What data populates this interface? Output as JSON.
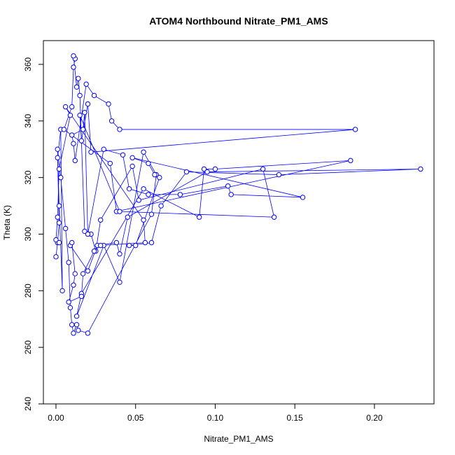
{
  "chart_data": {
    "type": "line",
    "points": true,
    "title": "ATOM4 Northbound Nitrate_PM1_AMS",
    "xlabel": "Nitrate_PM1_AMS",
    "ylabel": "Theta (K)",
    "x": [
      0.0,
      0.001,
      0.002,
      0.001,
      0.003,
      0.004,
      0.002,
      0.001,
      0.003,
      0.006,
      0.008,
      0.009,
      0.01,
      0.011,
      0.013,
      0.014,
      0.02,
      0.06,
      0.063,
      0.055,
      0.04,
      0.03,
      0.013,
      0.016,
      0.055,
      0.09,
      0.093,
      0.1,
      0.185,
      0.038,
      0.034,
      0.005,
      0.01,
      0.011,
      0.012,
      0.011,
      0.013,
      0.014,
      0.015,
      0.018,
      0.022,
      0.025,
      0.028,
      0.048,
      0.052,
      0.13,
      0.137,
      0.04,
      0.015,
      0.016,
      0.02,
      0.022,
      0.188,
      0.04,
      0.035,
      0.033,
      0.024,
      0.019,
      0.012,
      0.011,
      0.01,
      0.017,
      0.018,
      0.02,
      0.03,
      0.042,
      0.046,
      0.058,
      0.078,
      0.108,
      0.11,
      0.155,
      0.048,
      0.058,
      0.062,
      0.065,
      0.05,
      0.046,
      0.06,
      0.066,
      0.082,
      0.14,
      0.229,
      0.095,
      0.045,
      0.04,
      0.038,
      0.026,
      0.02,
      0.009,
      0.01,
      0.012,
      0.011,
      0.008,
      0.016,
      0.017,
      0.024,
      0.028,
      0.056,
      0.055,
      0.006,
      0.009,
      0.002,
      0.001,
      0.0,
      0.002
    ],
    "series": [
      {
        "name": "Theta (K)",
        "color": "#0000ff",
        "values": [
          292,
          297,
          304,
          327,
          337,
          280,
          310,
          330,
          320,
          302,
          290,
          274,
          268,
          265,
          268,
          266,
          265,
          307,
          321,
          329,
          283,
          296,
          271,
          279,
          316,
          306,
          323,
          323,
          326,
          308,
          325,
          337,
          345,
          359,
          362,
          363,
          352,
          355,
          349,
          301,
          300,
          294,
          305,
          324,
          312,
          323,
          306,
          308,
          342,
          333,
          346,
          329,
          337,
          337,
          340,
          346,
          349,
          353,
          326,
          332,
          335,
          337,
          343,
          300,
          330,
          328,
          316,
          314,
          314,
          317,
          314,
          313,
          327,
          325,
          321,
          320,
          296,
          296,
          297,
          310,
          322,
          321,
          323,
          322,
          306,
          293,
          297,
          296,
          287,
          296,
          297,
          286,
          282,
          276,
          278,
          286,
          294,
          296,
          297,
          305,
          345,
          342,
          323,
          306,
          298,
          297
        ]
      }
    ],
    "xlim": [
      -0.0079,
      0.2374
    ],
    "ylim": [
      240,
      368.4
    ],
    "xticks": [
      {
        "value": 0,
        "label": "0.00"
      },
      {
        "value": 0.05,
        "label": "0.05"
      },
      {
        "value": 0.1,
        "label": "0.10"
      },
      {
        "value": 0.15,
        "label": "0.15"
      },
      {
        "value": 0.2,
        "label": "0.20"
      }
    ],
    "yticks": [
      240,
      260,
      280,
      300,
      320,
      340,
      360
    ]
  }
}
